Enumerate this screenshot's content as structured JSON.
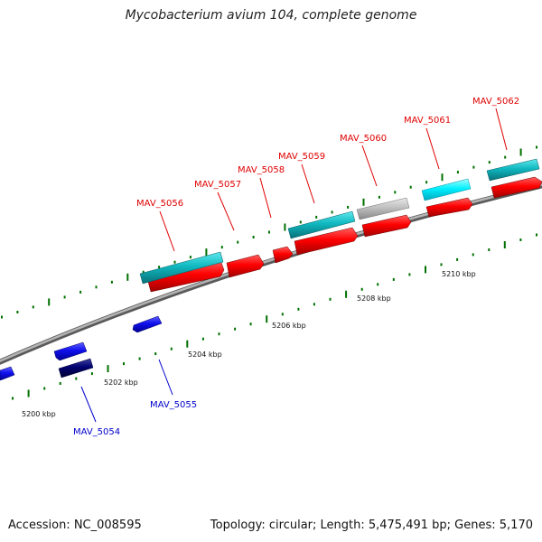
{
  "title": "Mycobacterium avium 104, complete genome",
  "accession_label": "Accession: NC_008595",
  "topology_label": "Topology: circular; Length: 5,475,491 bp; Genes: 5,170",
  "colors": {
    "forward_cds": "#e00000",
    "forward_feature": "#10b0b8",
    "forward_feature_bright": "#00e0f0",
    "forward_grey": "#b8b8b8",
    "reverse_cds": "#1010e0",
    "reverse_dark": "#000070",
    "backbone": "#8c8c8c",
    "tick": "#007000",
    "label_forward": "#e00000",
    "label_reverse": "#0000cc"
  },
  "tick_labels": [
    "5200 kbp",
    "5202 kbp",
    "5204 kbp",
    "5206 kbp",
    "5208 kbp",
    "5210 kbp"
  ],
  "forward_labels": [
    "MAV_5056",
    "MAV_5057",
    "MAV_5058",
    "MAV_5059",
    "MAV_5060",
    "MAV_5061",
    "MAV_5062"
  ],
  "reverse_labels": [
    "MAV_5054",
    "MAV_5055"
  ]
}
